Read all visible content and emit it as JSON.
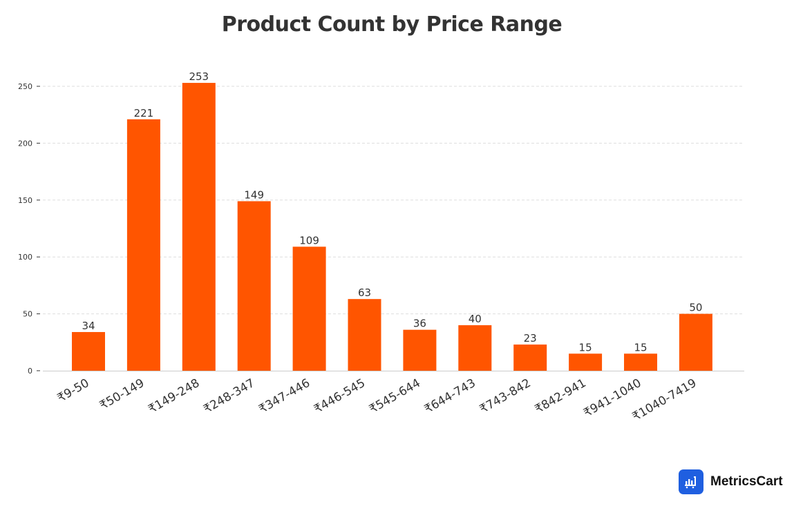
{
  "header": {
    "title": "Product Count by Price Range"
  },
  "brand": {
    "name": "MetricsCart",
    "logo_icon": "bar-chart-cart-icon",
    "logo_color": "#1f5fe0"
  },
  "colors": {
    "bar": "#ff5500",
    "grid": "#dddddd",
    "axis": "#cccccc",
    "text": "#333333"
  },
  "chart_data": {
    "type": "bar",
    "title": "Product Count by Price Range",
    "xlabel": "",
    "ylabel": "",
    "categories": [
      "₹9-50",
      "₹50-149",
      "₹149-248",
      "₹248-347",
      "₹347-446",
      "₹446-545",
      "₹545-644",
      "₹644-743",
      "₹743-842",
      "₹842-941",
      "₹941-1040",
      "₹1040-7419"
    ],
    "values": [
      34,
      221,
      253,
      149,
      109,
      63,
      36,
      40,
      23,
      15,
      15,
      50
    ],
    "yticks": [
      0,
      50,
      100,
      150,
      200,
      250
    ],
    "ylim": [
      0,
      260
    ],
    "grid": "horizontal dashed",
    "legend": "none",
    "data_labels": true,
    "xtick_rotation": -30
  }
}
